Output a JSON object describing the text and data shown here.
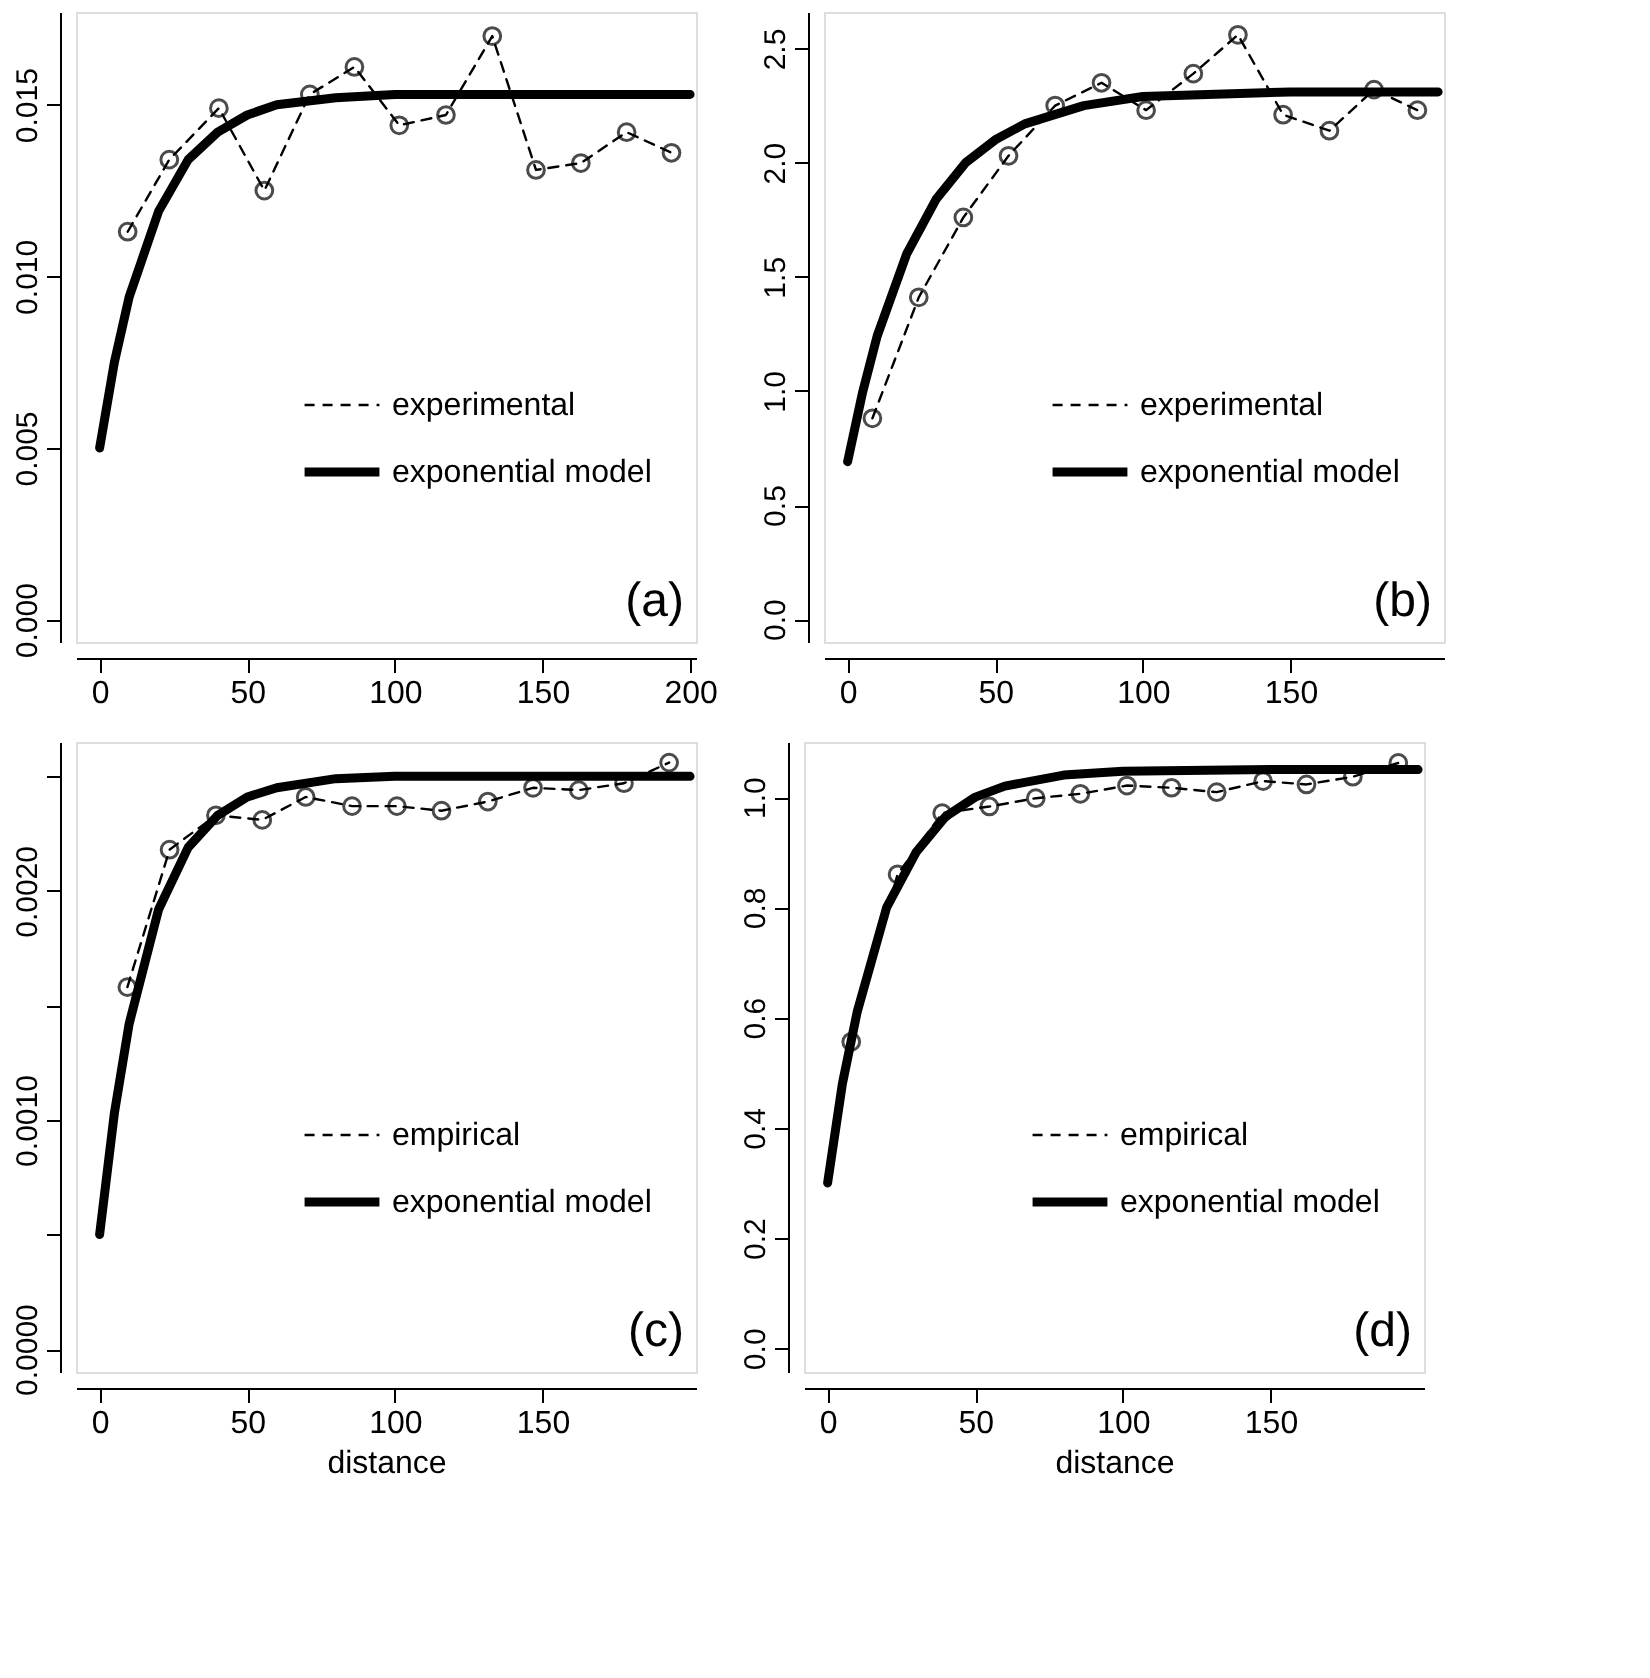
{
  "chart_data": [
    {
      "type": "line",
      "xlim": [
        -8,
        202
      ],
      "ylim": [
        -0.00065,
        0.0177
      ],
      "xticks": [
        0,
        50,
        100,
        150,
        200
      ],
      "yticks": [
        {
          "value": 0,
          "label": "0.000"
        },
        0.005,
        {
          "value": 0.01,
          "label": "0.010"
        },
        0.015
      ],
      "grid": false,
      "legend": "right",
      "annotations": [
        "(a)"
      ],
      "series": [
        {
          "name": "experimental",
          "color": "#000000",
          "marker": "circle",
          "line_style": "dashed",
          "x": [
            9.5,
            23.6,
            40.4,
            55.8,
            71.2,
            86.3,
            101.5,
            117.3,
            133,
            147.8,
            163,
            178.5,
            193.7
          ],
          "values": [
            0.0113,
            0.0134,
            0.0149,
            0.0125,
            0.0153,
            0.0161,
            0.0144,
            0.0147,
            0.017,
            0.0131,
            0.0133,
            0.0142,
            0.0136
          ]
        },
        {
          "name": "exponential model",
          "color": "#000000",
          "marker": "none",
          "line_style": "solid",
          "x": [
            0,
            5,
            10,
            20,
            30,
            40,
            50,
            60,
            80,
            100,
            150,
            200
          ],
          "values": [
            0.005,
            0.0075,
            0.0094,
            0.0119,
            0.0134,
            0.0142,
            0.0147,
            0.015,
            0.0152,
            0.0153,
            0.0153,
            0.0153
          ]
        }
      ]
    },
    {
      "type": "line",
      "xlim": [
        -8,
        202
      ],
      "ylim": [
        -0.1,
        2.66
      ],
      "xticks": [
        0,
        50,
        100,
        150
      ],
      "yticks": [
        {
          "value": 0,
          "label": "0.0"
        },
        0.5,
        {
          "value": 1,
          "label": "1.0"
        },
        1.5,
        {
          "value": 2,
          "label": "2.0"
        },
        2.5
      ],
      "grid": false,
      "legend": "right",
      "annotations": [
        "(b)"
      ],
      "series": [
        {
          "name": "experimental",
          "color": "#000000",
          "marker": "circle",
          "line_style": "dashed",
          "x": [
            8.4,
            24.1,
            39.2,
            54.5,
            70.3,
            86,
            101.1,
            117.1,
            132.2,
            147.5,
            163.2,
            178.3,
            193
          ],
          "values": [
            0.88,
            1.41,
            1.76,
            2.03,
            2.25,
            2.35,
            2.23,
            2.39,
            2.56,
            2.21,
            2.14,
            2.32,
            2.23
          ]
        },
        {
          "name": "exponential model",
          "color": "#000000",
          "marker": "none",
          "line_style": "solid",
          "x": [
            0,
            5,
            10,
            20,
            30,
            40,
            50,
            60,
            80,
            100,
            150,
            200
          ],
          "values": [
            0.69,
            0.99,
            1.24,
            1.6,
            1.84,
            2.0,
            2.1,
            2.17,
            2.25,
            2.29,
            2.31,
            2.31
          ]
        }
      ]
    },
    {
      "type": "line",
      "xlabel": "distance",
      "xlim": [
        -8,
        202
      ],
      "ylim": [
        -0.0001,
        0.00265
      ],
      "xticks": [
        0,
        50,
        100,
        150
      ],
      "yticks": [
        {
          "value": 0,
          "label": "0.0000"
        },
        {
          "value": 0.0005,
          "label": null
        },
        {
          "value": 0.001,
          "label": "0.0010"
        },
        {
          "value": 0.0015,
          "label": null
        },
        {
          "value": 0.002,
          "label": "0.0020"
        },
        {
          "value": 0.0025,
          "label": null
        }
      ],
      "grid": false,
      "legend": "right",
      "annotations": [
        "(c)"
      ],
      "series": [
        {
          "name": "empirical",
          "color": "#000000",
          "marker": "circle",
          "line_style": "dashed",
          "x": [
            9.4,
            23.7,
            39.4,
            55.1,
            69.8,
            85.5,
            100.7,
            115.8,
            131.5,
            146.8,
            162.3,
            177.6,
            192.9
          ],
          "values": [
            0.00158,
            0.00218,
            0.00233,
            0.00231,
            0.00241,
            0.00237,
            0.00237,
            0.00235,
            0.00239,
            0.00245,
            0.00244,
            0.00247,
            0.00256
          ]
        },
        {
          "name": "exponential model",
          "color": "#000000",
          "marker": "none",
          "line_style": "solid",
          "x": [
            0,
            5,
            10,
            20,
            30,
            40,
            50,
            60,
            80,
            100,
            150,
            200
          ],
          "values": [
            0.0005,
            0.00103,
            0.00142,
            0.00192,
            0.00219,
            0.00233,
            0.00241,
            0.00245,
            0.00249,
            0.0025,
            0.0025,
            0.0025
          ]
        }
      ]
    },
    {
      "type": "line",
      "xlabel": "distance",
      "xlim": [
        -8,
        202
      ],
      "ylim": [
        -0.043,
        1.1
      ],
      "xticks": [
        0,
        50,
        100,
        150
      ],
      "yticks": [
        {
          "value": 0,
          "label": "0.0"
        },
        0.2,
        0.4,
        0.6,
        0.8,
        {
          "value": 1,
          "label": "1.0"
        }
      ],
      "grid": false,
      "legend": "right",
      "annotations": [
        "(d)"
      ],
      "series": [
        {
          "name": "empirical",
          "color": "#000000",
          "marker": "circle",
          "line_style": "dashed",
          "x": [
            8,
            23.7,
            38.8,
            54.8,
            70.5,
            85.6,
            101.4,
            116.5,
            131.8,
            147.5,
            162.2,
            177.9,
            193.3
          ],
          "values": [
            0.556,
            0.86,
            0.971,
            0.983,
            0.998,
            1.006,
            1.021,
            1.017,
            1.009,
            1.029,
            1.023,
            1.037,
            1.062
          ]
        },
        {
          "name": "exponential model",
          "color": "#000000",
          "marker": "none",
          "line_style": "solid",
          "x": [
            0,
            5,
            10,
            20,
            30,
            40,
            50,
            60,
            80,
            100,
            150,
            200
          ],
          "values": [
            0.3,
            0.48,
            0.61,
            0.8,
            0.9,
            0.965,
            1.0,
            1.02,
            1.04,
            1.047,
            1.05,
            1.05
          ]
        }
      ]
    }
  ]
}
